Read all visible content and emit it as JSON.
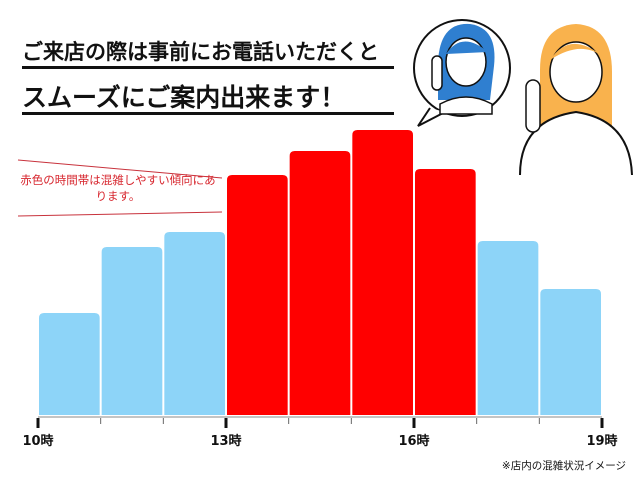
{
  "header": {
    "line1": "ご来店の際は事前にお電話いただくと",
    "line2": "スムーズにご案内出来ます！"
  },
  "annotation": "赤色の時間帯は混雑しやすい傾向にあります。",
  "footnote": "※店内の混雑状況イメージ",
  "illustration": "two-people-on-phone-call",
  "colors": {
    "busy": "#ff0000",
    "normal": "#8dd4f8",
    "note_text": "#d7262e"
  },
  "chart_data": {
    "type": "bar",
    "title": "",
    "xlabel": "",
    "ylabel": "",
    "categories": [
      "10-11",
      "11-12",
      "12-13",
      "13-14",
      "14-15",
      "15-16",
      "16-17",
      "17-18",
      "18-19"
    ],
    "tick_labels": [
      {
        "hour": 10,
        "label": "10時"
      },
      {
        "hour": 13,
        "label": "13時"
      },
      {
        "hour": 16,
        "label": "16時"
      },
      {
        "hour": 19,
        "label": "19時"
      }
    ],
    "values": [
      34,
      56,
      61,
      80,
      88,
      95,
      82,
      58,
      42
    ],
    "busy": [
      false,
      false,
      false,
      true,
      true,
      true,
      true,
      false,
      false
    ],
    "ylim": [
      0,
      100
    ],
    "y_axis_shown": false,
    "grid": false
  }
}
